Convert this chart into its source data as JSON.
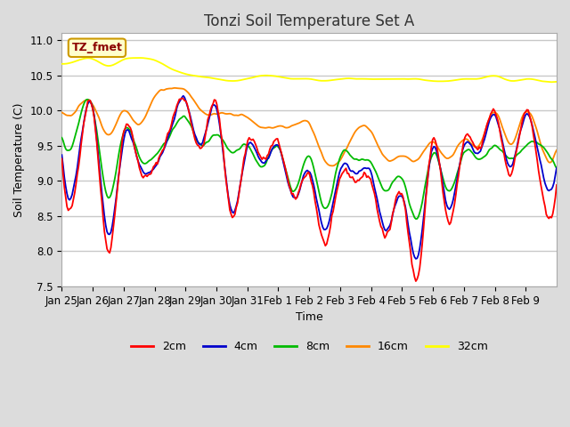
{
  "title": "Tonzi Soil Temperature Set A",
  "xlabel": "Time",
  "ylabel": "Soil Temperature (C)",
  "ylim": [
    7.5,
    11.1
  ],
  "annotation_text": "TZ_fmet",
  "annotation_color": "#8B0000",
  "annotation_bg": "#FFFFCC",
  "annotation_border": "#CC9900",
  "x_tick_labels": [
    "Jan 25",
    "Jan 26",
    "Jan 27",
    "Jan 28",
    "Jan 29",
    "Jan 30",
    "Jan 31",
    "Feb 1",
    "Feb 2",
    "Feb 3",
    "Feb 4",
    "Feb 5",
    "Feb 6",
    "Feb 7",
    "Feb 8",
    "Feb 9"
  ],
  "bg_color": "#DCDCDC",
  "plot_bg": "#FFFFFF",
  "grid_color": "#C8C8C8",
  "colors": {
    "2cm": "#FF0000",
    "4cm": "#0000CC",
    "8cm": "#00BB00",
    "16cm": "#FF8800",
    "32cm": "#FFFF00"
  },
  "legend_labels": [
    "2cm",
    "4cm",
    "8cm",
    "16cm",
    "32cm"
  ],
  "title_fontsize": 12
}
